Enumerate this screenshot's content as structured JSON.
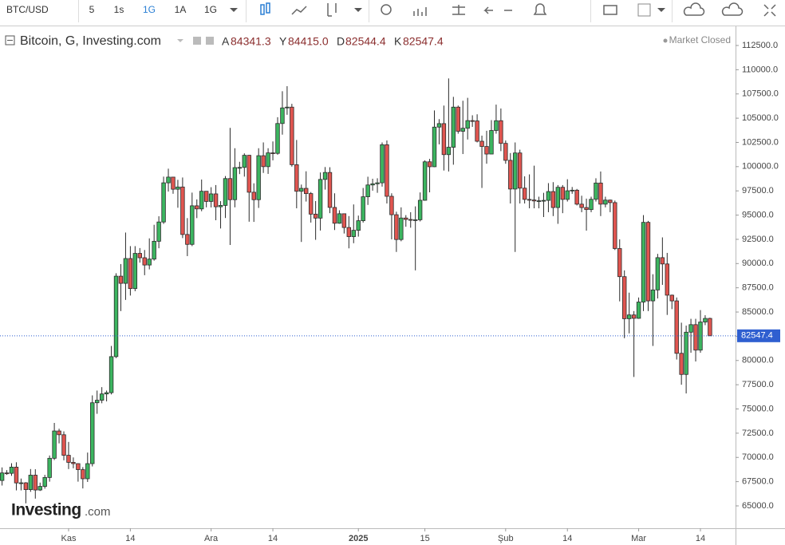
{
  "toolbar": {
    "symbol": "BTC/USD",
    "intervals": [
      "5",
      "1s",
      "1G",
      "1A",
      "1G"
    ],
    "active_interval": 2
  },
  "chart_data": {
    "type": "candlestick",
    "title": "Bitcoin, G, Investing.com",
    "status": "Market Closed",
    "ohlc_legend": [
      {
        "key": "A",
        "text": "84341.3"
      },
      {
        "key": "Y",
        "text": "84415.0"
      },
      {
        "key": "D",
        "text": "82544.4"
      },
      {
        "key": "K",
        "text": "82547.4"
      }
    ],
    "watermark": {
      "brand": "Investing",
      "suffix": ".com"
    },
    "up_color": "#3cb560",
    "down_color": "#e05550",
    "last_price_color": "#2f5fd0",
    "categories": [
      null,
      null,
      null,
      null,
      null,
      null,
      null,
      null,
      null,
      null,
      null,
      null,
      null,
      null,
      "Kas",
      null,
      null,
      null,
      null,
      null,
      null,
      null,
      null,
      null,
      null,
      null,
      null,
      "14",
      null,
      null,
      null,
      null,
      null,
      null,
      null,
      null,
      null,
      null,
      null,
      null,
      null,
      null,
      null,
      null,
      "Ara",
      null,
      null,
      null,
      null,
      null,
      null,
      null,
      null,
      null,
      null,
      null,
      null,
      "14",
      null,
      null,
      null,
      null,
      null,
      null,
      null,
      null,
      null,
      null,
      null,
      null,
      null,
      null,
      null,
      null,
      null,
      "2025",
      null,
      null,
      null,
      null,
      null,
      null,
      null,
      null,
      null,
      null,
      null,
      null,
      null,
      "15",
      null,
      null,
      null,
      null,
      null,
      null,
      null,
      null,
      null,
      null,
      null,
      null,
      null,
      null,
      null,
      null,
      "Şub",
      null,
      null,
      null,
      null,
      null,
      null,
      null,
      null,
      null,
      null,
      null,
      null,
      "14",
      null,
      null,
      null,
      null,
      null,
      null,
      null,
      null,
      null,
      null,
      null,
      null,
      null,
      null,
      "Mar",
      null,
      null,
      null,
      null,
      null,
      null,
      null,
      null,
      null,
      null,
      null,
      null,
      "14",
      null,
      null
    ],
    "open": [
      67620,
      68400,
      68360,
      69000,
      67370,
      67380,
      66680,
      68170,
      66640,
      67010,
      67930,
      69910,
      72730,
      72340,
      70220,
      69490,
      69360,
      68740,
      67800,
      69360,
      75640,
      75900,
      76550,
      76680,
      80400,
      88700,
      87960,
      90520,
      87420,
      91050,
      90600,
      89850,
      90460,
      92300,
      94290,
      98330,
      98920,
      97670,
      97900,
      93000,
      91980,
      95960,
      95640,
      97460,
      96410,
      97190,
      95860,
      96000,
      98770,
      96590,
      99900,
      99920,
      101170,
      97360,
      96590,
      101130,
      100000,
      101420,
      101370,
      104450,
      106060,
      106140,
      100200,
      97460,
      97760,
      97220,
      95100,
      94690,
      98680,
      99400,
      95790,
      94160,
      95140,
      93720,
      92780,
      93430,
      94420,
      96890,
      98110,
      98230,
      98330,
      102260,
      96940,
      95040,
      92480,
      94700,
      94550,
      94490,
      94520,
      96530,
      100500,
      99990,
      104080,
      104440,
      101240,
      102000,
      106140,
      103650,
      103960,
      104750,
      104720,
      102620,
      102080,
      101300,
      103730,
      104740,
      102400,
      100650,
      97690,
      101410,
      97780,
      96620,
      96560,
      96460,
      96480,
      96520,
      97430,
      95780,
      97870,
      96620,
      97510,
      97570,
      96130,
      95780,
      95570,
      96630,
      98310,
      96130,
      96550,
      96290,
      91550,
      88650,
      84310,
      84700,
      84350,
      86030,
      94250,
      86150,
      87280,
      90610,
      89960,
      86740,
      86150,
      80740,
      78560,
      82920,
      83700,
      81070,
      83970,
      84341.3
    ],
    "high": [
      68970,
      68690,
      69400,
      69500,
      67820,
      67450,
      68800,
      68780,
      67400,
      68200,
      70200,
      73560,
      72960,
      72690,
      71600,
      70000,
      69400,
      69000,
      70500,
      76400,
      76900,
      77250,
      76900,
      81500,
      89000,
      89950,
      93200,
      91800,
      91800,
      91600,
      91400,
      92600,
      94000,
      94880,
      98970,
      99790,
      98740,
      98640,
      98880,
      94690,
      97320,
      96620,
      98670,
      97470,
      97880,
      98100,
      96440,
      99030,
      104000,
      101900,
      100500,
      101370,
      101210,
      98280,
      101900,
      102500,
      101900,
      102600,
      105100,
      107780,
      108300,
      106480,
      102750,
      98150,
      99520,
      97380,
      96450,
      99400,
      99960,
      99940,
      97250,
      95500,
      95170,
      94900,
      96100,
      94950,
      97800,
      98960,
      98750,
      98800,
      102500,
      102700,
      97250,
      95350,
      95800,
      95000,
      95300,
      95900,
      97340,
      100650,
      100800,
      105800,
      104900,
      106300,
      109100,
      107200,
      106300,
      106800,
      107100,
      105300,
      105400,
      103200,
      103700,
      104800,
      106400,
      106000,
      102700,
      101400,
      102500,
      101750,
      99000,
      99200,
      100100,
      96900,
      97300,
      98300,
      98400,
      98100,
      98100,
      98700,
      97900,
      97700,
      97000,
      96700,
      96900,
      98800,
      99500,
      96900,
      96600,
      96500,
      92500,
      89300,
      87000,
      85100,
      86500,
      95000,
      94400,
      88900,
      91000,
      92700,
      91100,
      86800,
      86500,
      83900,
      83600,
      84300,
      84300,
      85200,
      84670,
      84415.0
    ],
    "low": [
      67100,
      68200,
      68100,
      66600,
      66600,
      65260,
      66450,
      65750,
      66540,
      66780,
      67500,
      69730,
      71450,
      69700,
      68800,
      68880,
      67500,
      66800,
      67470,
      69070,
      74500,
      75590,
      75780,
      76500,
      80250,
      85100,
      86250,
      86700,
      87150,
      90100,
      88800,
      89400,
      90300,
      91580,
      94090,
      97430,
      97200,
      95760,
      92630,
      90770,
      91800,
      94690,
      95400,
      95800,
      95790,
      94470,
      93620,
      94700,
      91920,
      95800,
      99230,
      98970,
      94320,
      94300,
      95740,
      99350,
      99250,
      100650,
      101230,
      103300,
      105350,
      100000,
      95700,
      92230,
      96400,
      94230,
      92450,
      93410,
      97630,
      95200,
      93460,
      94110,
      93100,
      91570,
      92100,
      92780,
      94230,
      96050,
      97520,
      97300,
      97940,
      96200,
      92500,
      91200,
      92300,
      93800,
      93700,
      89300,
      94350,
      96480,
      97350,
      99950,
      102300,
      99600,
      99500,
      100200,
      103400,
      101300,
      102800,
      104100,
      102500,
      97800,
      100300,
      101300,
      103400,
      101600,
      100300,
      96200,
      91200,
      96200,
      96200,
      95700,
      95700,
      95700,
      94800,
      95300,
      94900,
      94100,
      95200,
      96400,
      97200,
      96000,
      95300,
      93400,
      95300,
      96400,
      94900,
      95800,
      95300,
      91400,
      86100,
      82300,
      82800,
      78300,
      84300,
      85100,
      85100,
      81500,
      86400,
      87800,
      84700,
      85300,
      80100,
      77500,
      76600,
      80800,
      79900,
      80800,
      83650,
      82544.4
    ],
    "close": [
      68400,
      68360,
      69000,
      67370,
      67380,
      66680,
      68170,
      66640,
      67010,
      67930,
      69910,
      72730,
      72340,
      70220,
      69490,
      69360,
      68740,
      67800,
      69360,
      75640,
      75900,
      76550,
      76680,
      80400,
      88700,
      87960,
      90520,
      87420,
      91050,
      90600,
      89850,
      90460,
      92300,
      94290,
      98330,
      98920,
      97670,
      97900,
      93000,
      91980,
      95960,
      95640,
      97460,
      96410,
      97190,
      95860,
      96000,
      98770,
      96590,
      99900,
      99920,
      101170,
      97360,
      96590,
      101130,
      100000,
      101420,
      101370,
      104450,
      106060,
      106140,
      100200,
      97460,
      97760,
      97220,
      95100,
      94690,
      98680,
      99400,
      95790,
      94160,
      95140,
      93720,
      92780,
      93430,
      94420,
      96890,
      98110,
      98230,
      98330,
      102260,
      96940,
      95040,
      92480,
      94700,
      94550,
      94490,
      94520,
      96530,
      100500,
      99990,
      104080,
      104440,
      101240,
      102000,
      106140,
      103650,
      103960,
      104750,
      104720,
      102620,
      102080,
      101300,
      103730,
      104740,
      102400,
      100650,
      97690,
      101410,
      97780,
      96620,
      96560,
      96460,
      96480,
      96520,
      97430,
      95780,
      97870,
      96620,
      97510,
      97570,
      96130,
      95780,
      95570,
      96630,
      98310,
      96130,
      96550,
      96290,
      91550,
      88650,
      84310,
      84700,
      84350,
      86030,
      94250,
      86150,
      87280,
      90610,
      89960,
      86740,
      86150,
      80740,
      78560,
      82920,
      83700,
      81070,
      83970,
      84340,
      82547.4
    ],
    "ylim": [
      62693,
      114393
    ],
    "yticks": [
      {
        "value": 65000,
        "label": "65000.0"
      },
      {
        "value": 67500,
        "label": "67500.0"
      },
      {
        "value": 70000,
        "label": "70000.0"
      },
      {
        "value": 72500,
        "label": "72500.0"
      },
      {
        "value": 75000,
        "label": "75000.0"
      },
      {
        "value": 77500,
        "label": "77500.0"
      },
      {
        "value": 80000,
        "label": "80000.0"
      },
      {
        "value": 82500,
        "label": "82500.0"
      },
      {
        "value": 85000,
        "label": "85000.0"
      },
      {
        "value": 87500,
        "label": "87500.0"
      },
      {
        "value": 90000,
        "label": "90000.0"
      },
      {
        "value": 92500,
        "label": "92500.0"
      },
      {
        "value": 95000,
        "label": "95000.0"
      },
      {
        "value": 97500,
        "label": "97500.0"
      },
      {
        "value": 100000,
        "label": "100000.0"
      },
      {
        "value": 102500,
        "label": "102500.0"
      },
      {
        "value": 105000,
        "label": "105000.0"
      },
      {
        "value": 107500,
        "label": "107500.0"
      },
      {
        "value": 110000,
        "label": "110000.0"
      },
      {
        "value": 112500,
        "label": "112500.0"
      }
    ],
    "grid": false
  }
}
